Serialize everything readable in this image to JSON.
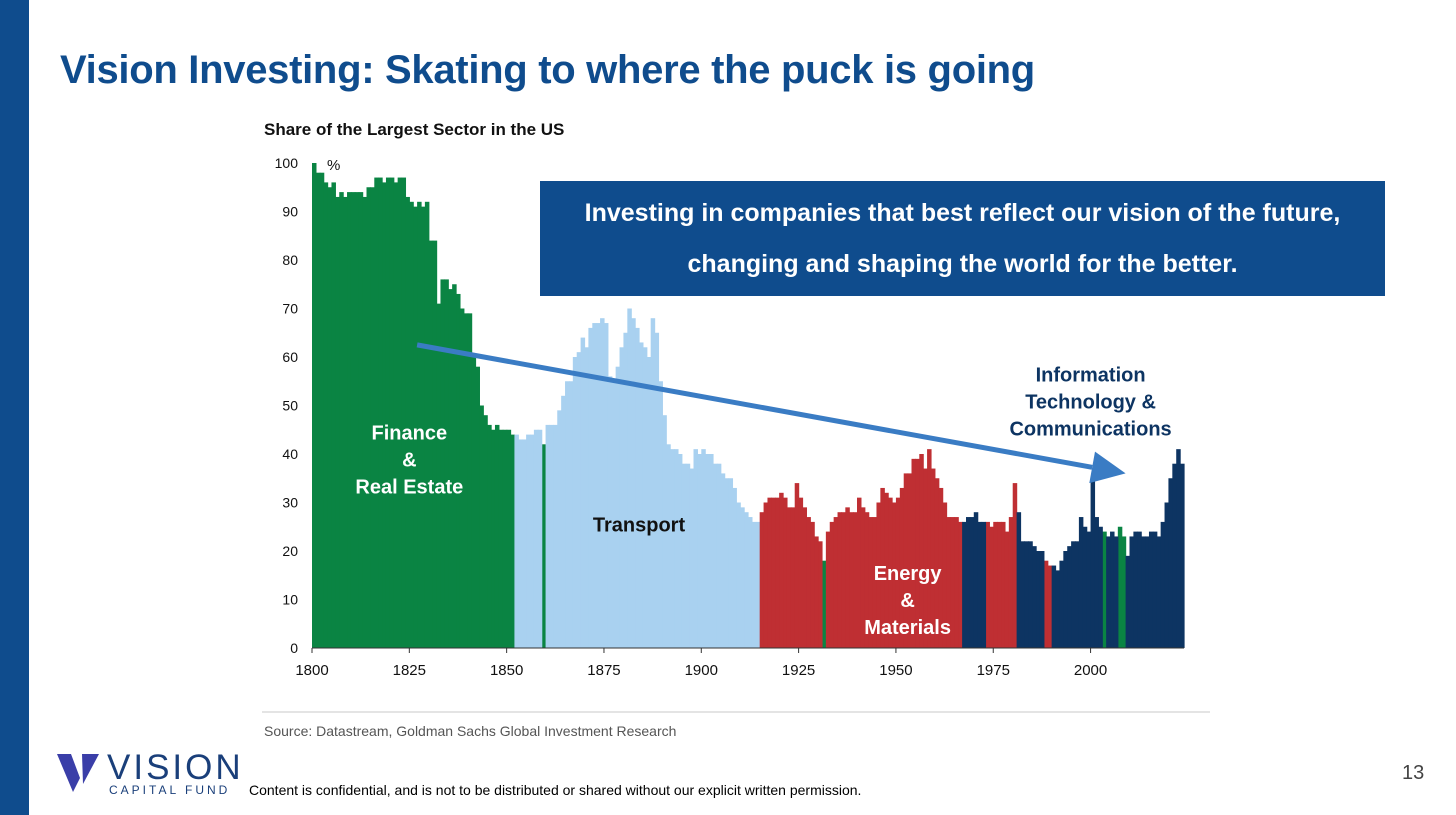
{
  "slide": {
    "title": "Vision Investing: Skating to where the puck is going",
    "callout": "Investing in companies that best reflect our vision of the future, changing and shaping the world for the better.",
    "disclaimer": "Content is confidential, and is not to be distributed or shared without our explicit written permission.",
    "page_number": "13",
    "logo": {
      "word": "VISION",
      "sub": "CAPITAL FUND"
    }
  },
  "colors": {
    "brand": "#0f4c8d",
    "finance": "#0a8443",
    "transport": "#a9d1f0",
    "energy": "#bf2f33",
    "it": "#0d3462",
    "arrow": "#3a7cc4"
  },
  "chart_data": {
    "type": "bar",
    "title": "Share of the Largest Sector in the US",
    "ylabel": "%",
    "xlabel": "",
    "source": "Source: Datastream, Goldman Sachs Global Investment Research",
    "xlim": [
      1800,
      2023
    ],
    "ylim": [
      0,
      100
    ],
    "x_ticks": [
      1800,
      1825,
      1850,
      1875,
      1900,
      1925,
      1950,
      1975,
      2000
    ],
    "y_ticks": [
      0,
      10,
      20,
      30,
      40,
      50,
      60,
      70,
      80,
      90,
      100
    ],
    "grid": false,
    "series": [
      {
        "name": "Finance & Real Estate",
        "color": "#0a8443",
        "x": [
          1800,
          1801,
          1802,
          1803,
          1804,
          1805,
          1806,
          1807,
          1808,
          1809,
          1810,
          1811,
          1812,
          1813,
          1814,
          1815,
          1816,
          1817,
          1818,
          1819,
          1820,
          1821,
          1822,
          1823,
          1824,
          1825,
          1826,
          1827,
          1828,
          1829,
          1830,
          1831,
          1832,
          1833,
          1834,
          1835,
          1836,
          1837,
          1838,
          1839,
          1840,
          1841,
          1842,
          1843,
          1844,
          1845,
          1846,
          1847,
          1848,
          1849,
          1850,
          1851,
          1859,
          1931,
          2003,
          2007,
          2008
        ],
        "values": [
          100,
          98,
          98,
          96,
          95,
          96,
          93,
          94,
          93,
          94,
          94,
          94,
          94,
          93,
          95,
          95,
          97,
          97,
          96,
          97,
          97,
          96,
          97,
          97,
          93,
          92,
          91,
          92,
          91,
          92,
          84,
          84,
          71,
          76,
          76,
          74,
          75,
          73,
          70,
          69,
          69,
          60,
          58,
          50,
          48,
          46,
          45,
          46,
          45,
          45,
          45,
          44,
          42,
          18,
          24,
          25,
          23
        ]
      },
      {
        "name": "Transport",
        "color": "#a9d1f0",
        "x": [
          1852,
          1853,
          1854,
          1855,
          1856,
          1857,
          1858,
          1860,
          1861,
          1862,
          1863,
          1864,
          1865,
          1866,
          1867,
          1868,
          1869,
          1870,
          1871,
          1872,
          1873,
          1874,
          1875,
          1876,
          1877,
          1878,
          1879,
          1880,
          1881,
          1882,
          1883,
          1884,
          1885,
          1886,
          1887,
          1888,
          1889,
          1890,
          1891,
          1892,
          1893,
          1894,
          1895,
          1896,
          1897,
          1898,
          1899,
          1900,
          1901,
          1902,
          1903,
          1904,
          1905,
          1906,
          1907,
          1908,
          1909,
          1910,
          1911,
          1912,
          1913,
          1914
        ],
        "values": [
          44,
          43,
          43,
          44,
          44,
          45,
          45,
          46,
          46,
          46,
          49,
          52,
          55,
          55,
          60,
          61,
          64,
          62,
          66,
          67,
          67,
          68,
          67,
          56,
          55,
          58,
          62,
          65,
          70,
          68,
          66,
          63,
          62,
          60,
          68,
          65,
          55,
          48,
          42,
          41,
          41,
          40,
          38,
          38,
          37,
          41,
          40,
          41,
          40,
          40,
          38,
          38,
          36,
          35,
          35,
          33,
          30,
          29,
          28,
          27,
          26,
          26
        ]
      },
      {
        "name": "Energy & Materials",
        "color": "#bf2f33",
        "x": [
          1915,
          1916,
          1917,
          1918,
          1919,
          1920,
          1921,
          1922,
          1923,
          1924,
          1925,
          1926,
          1927,
          1928,
          1929,
          1930,
          1932,
          1933,
          1934,
          1935,
          1936,
          1937,
          1938,
          1939,
          1940,
          1941,
          1942,
          1943,
          1944,
          1945,
          1946,
          1947,
          1948,
          1949,
          1950,
          1951,
          1952,
          1953,
          1954,
          1955,
          1956,
          1957,
          1958,
          1959,
          1960,
          1961,
          1962,
          1963,
          1964,
          1965,
          1966,
          1973,
          1974,
          1975,
          1976,
          1977,
          1978,
          1979,
          1980,
          1988,
          1989
        ],
        "values": [
          28,
          30,
          31,
          31,
          31,
          32,
          31,
          29,
          29,
          34,
          31,
          29,
          27,
          26,
          23,
          22,
          24,
          26,
          27,
          28,
          28,
          29,
          28,
          28,
          31,
          29,
          28,
          27,
          27,
          30,
          33,
          32,
          31,
          30,
          31,
          33,
          36,
          36,
          39,
          39,
          40,
          37,
          41,
          37,
          35,
          33,
          30,
          27,
          27,
          27,
          26,
          26,
          25,
          26,
          26,
          26,
          24,
          27,
          34,
          18,
          17
        ]
      },
      {
        "name": "Information Technology & Communications",
        "color": "#0d3462",
        "x": [
          1967,
          1968,
          1969,
          1970,
          1971,
          1972,
          1981,
          1982,
          1983,
          1984,
          1985,
          1986,
          1987,
          1990,
          1991,
          1992,
          1993,
          1994,
          1995,
          1996,
          1997,
          1998,
          1999,
          2000,
          2001,
          2002,
          2004,
          2005,
          2006,
          2009,
          2010,
          2011,
          2012,
          2013,
          2014,
          2015,
          2016,
          2017,
          2018,
          2019,
          2020,
          2021,
          2022,
          2023
        ],
        "values": [
          26,
          27,
          27,
          28,
          26,
          26,
          28,
          22,
          22,
          22,
          21,
          20,
          20,
          17,
          16,
          18,
          20,
          21,
          22,
          22,
          27,
          25,
          24,
          35,
          27,
          25,
          23,
          24,
          23,
          19,
          23,
          24,
          24,
          23,
          23,
          24,
          24,
          23,
          26,
          30,
          35,
          38,
          41,
          38
        ]
      }
    ],
    "annotations": [
      {
        "text": [
          "Finance",
          "&",
          "Real Estate"
        ],
        "color": "#ffffff",
        "x": 1825,
        "y": 43
      },
      {
        "text": [
          "Transport"
        ],
        "color": "#111111",
        "x": 1884,
        "y": 24
      },
      {
        "text": [
          "Energy",
          "&",
          "Materials"
        ],
        "color": "#ffffff",
        "x": 1953,
        "y": 14
      },
      {
        "text": [
          "Information",
          "Technology &",
          "Communications"
        ],
        "color": "#0d3462",
        "x": 2000,
        "y": 55
      }
    ],
    "arrow": {
      "from": [
        1827,
        62.5
      ],
      "to": [
        2009,
        36
      ]
    }
  }
}
